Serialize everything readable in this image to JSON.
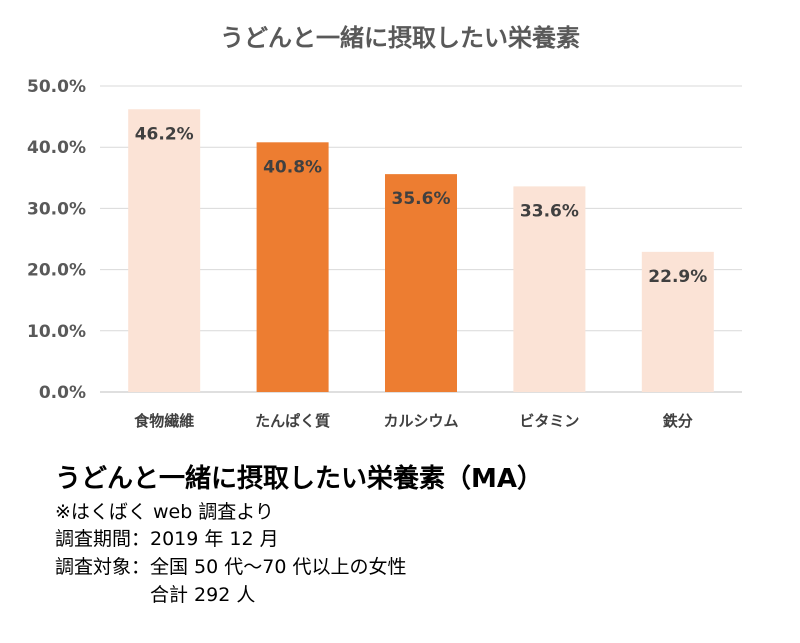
{
  "chart_data": {
    "type": "bar",
    "title": "うどんと一緒に摂取したい栄養素",
    "categories": [
      "食物繊維",
      "たんぱく質",
      "カルシウム",
      "ビタミン",
      "鉄分"
    ],
    "values": [
      46.2,
      40.8,
      35.6,
      33.6,
      22.9
    ],
    "data_labels": [
      "46.2%",
      "40.8%",
      "35.6%",
      "33.6%",
      "22.9%"
    ],
    "highlighted": [
      false,
      true,
      true,
      false,
      false
    ],
    "colors": {
      "normal": "#fbe3d6",
      "highlight": "#ed7d31"
    },
    "ylim": [
      0,
      50
    ],
    "yticks": [
      0,
      10,
      20,
      30,
      40,
      50
    ],
    "ytick_labels": [
      "0.0%",
      "10.0%",
      "20.0%",
      "30.0%",
      "40.0%",
      "50.0%"
    ],
    "xlabel": "",
    "ylabel": "",
    "grid": true,
    "legend": "none"
  },
  "caption": {
    "title": "うどんと一緒に摂取したい栄養素（MA）",
    "source": "※はくばく web 調査より",
    "period": "調査期間：2019 年 12 月",
    "target": "調査対象：全国 50 代〜70 代以上の女性",
    "total": "　　　　　合計 292 人"
  }
}
